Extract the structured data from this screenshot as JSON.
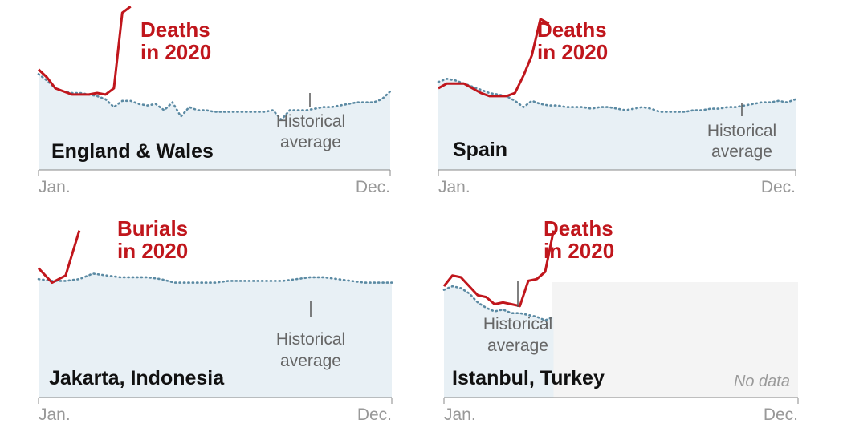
{
  "colors": {
    "highlight": "#c0161c",
    "historical": "#5b8aa3",
    "area_fill": "#e8f0f5",
    "nodata_fill": "#f4f4f4",
    "axis": "#888888"
  },
  "chart_data": [
    {
      "type": "line",
      "title": "England & Wales",
      "x_ticks": [
        "Jan.",
        "Dec."
      ],
      "ylim": [
        0,
        100
      ],
      "series": [
        {
          "name": "Deaths in 2020",
          "style": "solid",
          "values": [
            [
              1,
              64
            ],
            [
              2,
              59
            ],
            [
              3,
              52
            ],
            [
              4,
              50
            ],
            [
              5,
              48
            ],
            [
              6,
              48
            ],
            [
              7,
              48
            ],
            [
              8,
              49
            ],
            [
              9,
              48
            ],
            [
              10,
              52
            ],
            [
              11,
              100
            ],
            [
              12,
              104
            ]
          ]
        },
        {
          "name": "Historical average",
          "style": "dotted",
          "values": [
            [
              1,
              61
            ],
            [
              2,
              57
            ],
            [
              3,
              52
            ],
            [
              4,
              50
            ],
            [
              5,
              49
            ],
            [
              6,
              49
            ],
            [
              7,
              48
            ],
            [
              8,
              47
            ],
            [
              9,
              45
            ],
            [
              10,
              40
            ],
            [
              11,
              44
            ],
            [
              12,
              44
            ],
            [
              13,
              42
            ],
            [
              14,
              41
            ],
            [
              15,
              42
            ],
            [
              16,
              38
            ],
            [
              17,
              43
            ],
            [
              18,
              34
            ],
            [
              19,
              40
            ],
            [
              20,
              38
            ],
            [
              21,
              38
            ],
            [
              22,
              37
            ],
            [
              23,
              37
            ],
            [
              24,
              37
            ],
            [
              25,
              37
            ],
            [
              26,
              37
            ],
            [
              27,
              37
            ],
            [
              28,
              37
            ],
            [
              29,
              38
            ],
            [
              30,
              32
            ],
            [
              31,
              38
            ],
            [
              32,
              38
            ],
            [
              33,
              38
            ],
            [
              34,
              39
            ],
            [
              35,
              40
            ],
            [
              36,
              40
            ],
            [
              37,
              41
            ],
            [
              38,
              42
            ],
            [
              39,
              43
            ],
            [
              40,
              43
            ],
            [
              41,
              43
            ],
            [
              42,
              45
            ],
            [
              43,
              50
            ]
          ]
        }
      ],
      "labels": {
        "series": "Deaths in 2020",
        "average": "Historical average"
      }
    },
    {
      "type": "line",
      "title": "Spain",
      "x_ticks": [
        "Jan.",
        "Dec."
      ],
      "ylim": [
        0,
        100
      ],
      "series": [
        {
          "name": "Deaths in 2020",
          "style": "solid",
          "values": [
            [
              1,
              52
            ],
            [
              2,
              55
            ],
            [
              3,
              55
            ],
            [
              4,
              55
            ],
            [
              5,
              52
            ],
            [
              6,
              49
            ],
            [
              7,
              47
            ],
            [
              8,
              47
            ],
            [
              9,
              47
            ],
            [
              10,
              49
            ],
            [
              11,
              60
            ],
            [
              12,
              73
            ],
            [
              13,
              96
            ],
            [
              14,
              93
            ]
          ]
        },
        {
          "name": "Historical average",
          "style": "dotted",
          "values": [
            [
              1,
              56
            ],
            [
              2,
              58
            ],
            [
              3,
              57
            ],
            [
              4,
              55
            ],
            [
              5,
              53
            ],
            [
              6,
              51
            ],
            [
              7,
              49
            ],
            [
              8,
              48
            ],
            [
              9,
              47
            ],
            [
              10,
              44
            ],
            [
              11,
              40
            ],
            [
              12,
              44
            ],
            [
              13,
              42
            ],
            [
              14,
              41
            ],
            [
              15,
              41
            ],
            [
              16,
              40
            ],
            [
              17,
              40
            ],
            [
              18,
              40
            ],
            [
              19,
              39
            ],
            [
              20,
              40
            ],
            [
              21,
              40
            ],
            [
              22,
              39
            ],
            [
              23,
              38
            ],
            [
              24,
              39
            ],
            [
              25,
              40
            ],
            [
              26,
              39
            ],
            [
              27,
              37
            ],
            [
              28,
              37
            ],
            [
              29,
              37
            ],
            [
              30,
              37
            ],
            [
              31,
              38
            ],
            [
              32,
              38
            ],
            [
              33,
              39
            ],
            [
              34,
              39
            ],
            [
              35,
              40
            ],
            [
              36,
              40
            ],
            [
              37,
              41
            ],
            [
              38,
              42
            ],
            [
              39,
              43
            ],
            [
              40,
              43
            ],
            [
              41,
              44
            ],
            [
              42,
              43
            ],
            [
              43,
              45
            ]
          ]
        }
      ],
      "labels": {
        "series": "Deaths in 2020",
        "average": "Historical average"
      }
    },
    {
      "type": "line",
      "title": "Jakarta, Indonesia",
      "x_ticks": [
        "Jan.",
        "Dec."
      ],
      "ylim": [
        0,
        100
      ],
      "series": [
        {
          "name": "Burials in 2020",
          "style": "solid",
          "values": [
            [
              1,
              72
            ],
            [
              2,
              64
            ],
            [
              3,
              68
            ],
            [
              4,
              93
            ]
          ]
        },
        {
          "name": "Historical average",
          "style": "dotted",
          "values": [
            [
              1,
              66
            ],
            [
              2,
              65
            ],
            [
              3,
              65
            ],
            [
              4,
              66
            ],
            [
              5,
              69
            ],
            [
              6,
              68
            ],
            [
              7,
              67
            ],
            [
              8,
              67
            ],
            [
              9,
              67
            ],
            [
              10,
              66
            ],
            [
              11,
              64
            ],
            [
              12,
              64
            ],
            [
              13,
              64
            ],
            [
              14,
              64
            ],
            [
              15,
              65
            ],
            [
              16,
              65
            ],
            [
              17,
              65
            ],
            [
              18,
              65
            ],
            [
              19,
              65
            ],
            [
              20,
              66
            ],
            [
              21,
              67
            ],
            [
              22,
              67
            ],
            [
              23,
              66
            ],
            [
              24,
              65
            ],
            [
              25,
              64
            ],
            [
              26,
              64
            ],
            [
              27,
              64
            ]
          ]
        }
      ],
      "labels": {
        "series": "Burials in 2020",
        "average": "Historical average"
      }
    },
    {
      "type": "line",
      "title": "Istanbul, Turkey",
      "x_ticks": [
        "Jan.",
        "Dec."
      ],
      "ylim": [
        0,
        100
      ],
      "no_data_label": "No data",
      "series": [
        {
          "name": "Deaths in 2020",
          "style": "solid",
          "values": [
            [
              1,
              62
            ],
            [
              2,
              68
            ],
            [
              3,
              67
            ],
            [
              4,
              62
            ],
            [
              5,
              57
            ],
            [
              6,
              56
            ],
            [
              7,
              52
            ],
            [
              8,
              53
            ],
            [
              9,
              52
            ],
            [
              10,
              51
            ],
            [
              11,
              65
            ],
            [
              12,
              66
            ],
            [
              13,
              70
            ],
            [
              14,
              93
            ]
          ]
        },
        {
          "name": "Historical average",
          "style": "dotted",
          "values": [
            [
              1,
              60
            ],
            [
              2,
              62
            ],
            [
              3,
              61
            ],
            [
              4,
              58
            ],
            [
              5,
              53
            ],
            [
              6,
              50
            ],
            [
              7,
              48
            ],
            [
              8,
              49
            ],
            [
              9,
              47
            ],
            [
              10,
              47
            ],
            [
              11,
              46
            ],
            [
              12,
              45
            ],
            [
              13,
              43
            ],
            [
              14,
              45
            ]
          ]
        }
      ],
      "labels": {
        "series": "Deaths in 2020",
        "average": "Historical average"
      }
    }
  ]
}
